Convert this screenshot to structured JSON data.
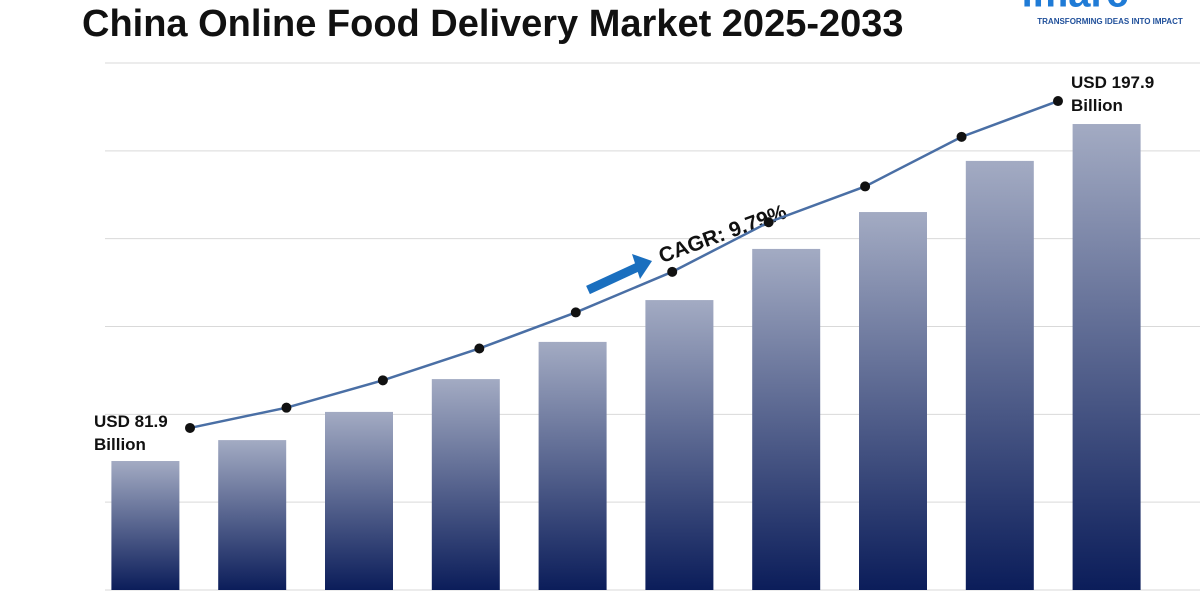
{
  "chart_data": {
    "type": "bar",
    "title": "China Online Food Delivery Market 2025-2033",
    "categories": [
      null,
      null,
      null,
      null,
      null,
      null,
      null,
      null,
      null,
      null
    ],
    "values": [
      81.9,
      89.1,
      98.8,
      110.1,
      122.9,
      137.3,
      154.9,
      167.6,
      185.2,
      197.9
    ],
    "value_labels": [
      "USD 81.9 Billion",
      null,
      null,
      null,
      null,
      null,
      null,
      null,
      null,
      "USD 197.9 Billion"
    ],
    "ylim": [
      37.5,
      218.9
    ],
    "y2lim": [
      24.4,
      211.4
    ],
    "line_overlay": true,
    "grid_divisions": 6,
    "bar_color_top": "#a3abc3",
    "bar_color_bottom": "#0b1d5a",
    "line_color": "#4a6fa5",
    "annotation": "CAGR: 9.79%",
    "logo": {
      "name": "imarc",
      "tagline": "TRANSFORMING IDEAS INTO IMPACT"
    }
  }
}
